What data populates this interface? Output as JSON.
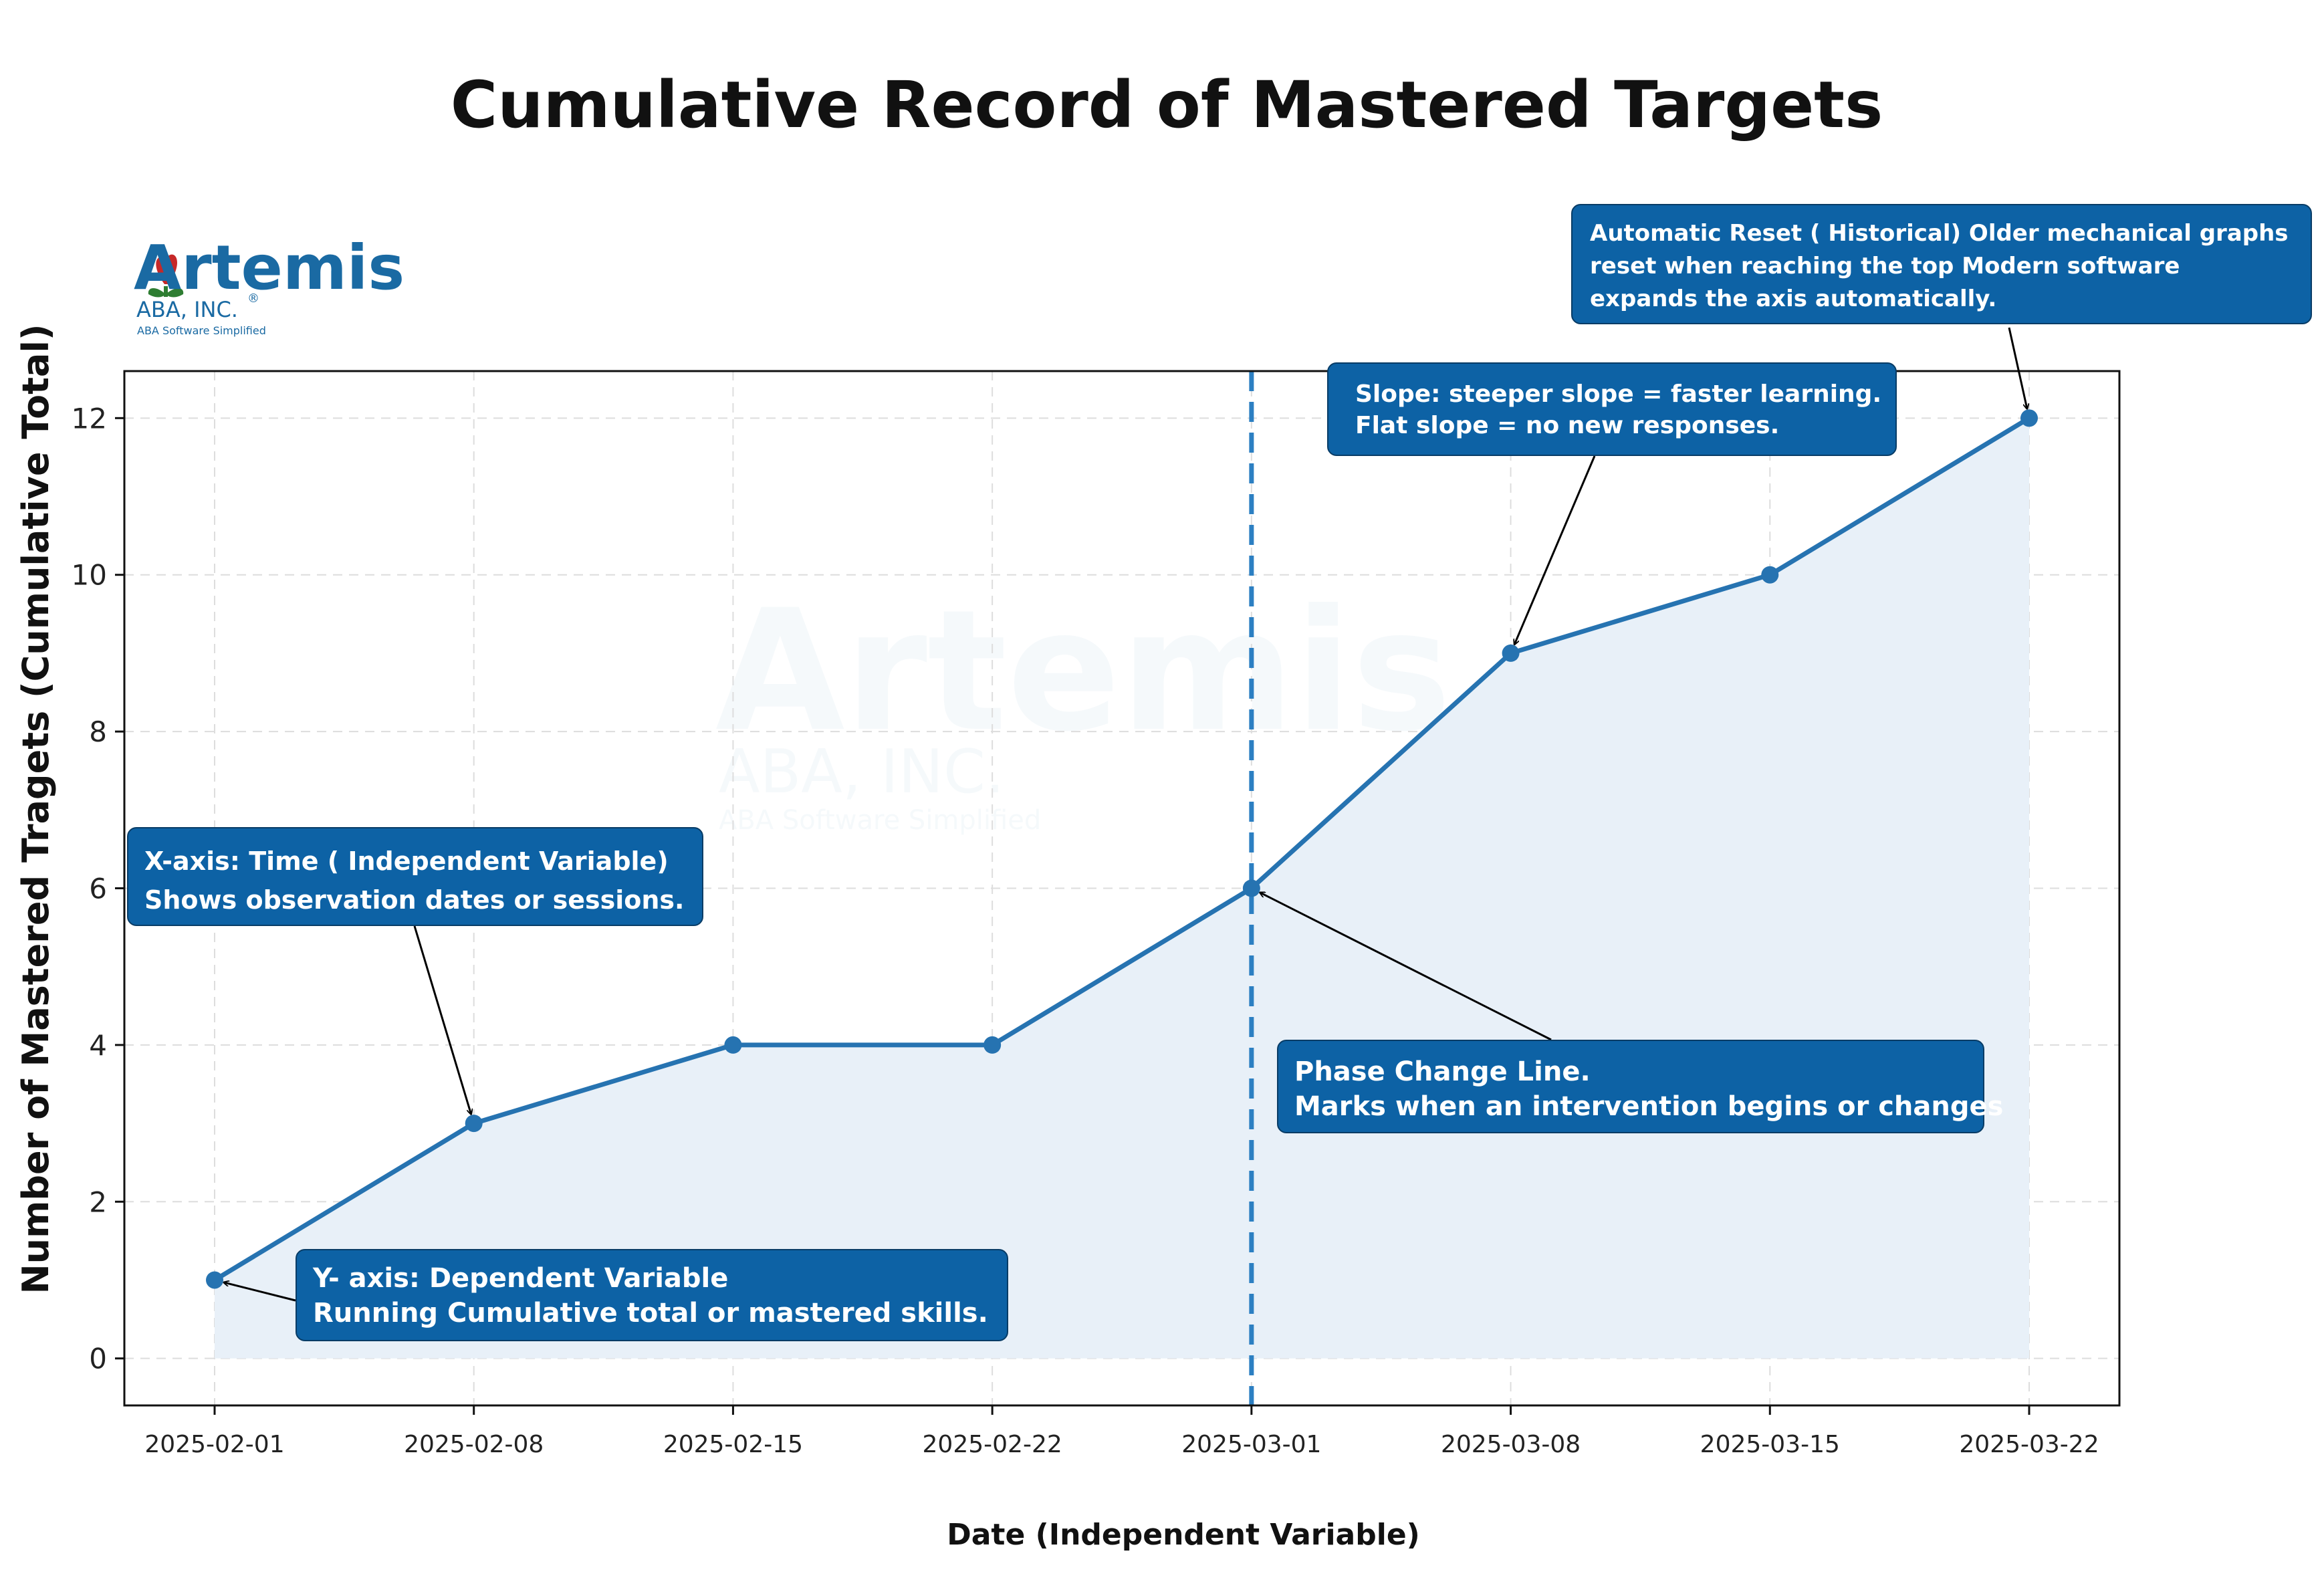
{
  "logo": {
    "name": "Artemis",
    "company": "ABA, INC.",
    "registered": "®",
    "tagline": "ABA Software Simplified"
  },
  "chart_data": {
    "type": "line",
    "title": "Cumulative Record of Mastered Targets",
    "xlabel": "Date (Independent Variable)",
    "ylabel": "Number of Mastered Tragets (Cumulative Total)",
    "x": [
      "2025-02-01",
      "2025-02-08",
      "2025-02-15",
      "2025-02-22",
      "2025-03-01",
      "2025-03-08",
      "2025-03-15",
      "2025-03-22"
    ],
    "values": [
      1,
      3,
      4,
      4,
      6,
      9,
      10,
      12
    ],
    "ylim": [
      -0.6,
      12.6
    ],
    "yticks": [
      0,
      2,
      4,
      6,
      8,
      10,
      12
    ],
    "grid": true,
    "filled_area": true,
    "line_color": "#2673b1",
    "fill_color": "#e8f0f8",
    "phase_change": {
      "x": "2025-03-01",
      "color": "#2c7fc2"
    },
    "annotations": [
      {
        "id": "reset",
        "target_x": "2025-03-22",
        "target_y": 12,
        "lines": [
          "Automatic Reset ( Historical) Older mechanical graphs",
          "reset when reaching the top Modern software",
          "expands the axis automatically."
        ]
      },
      {
        "id": "slope",
        "target_x": "2025-03-08",
        "target_y": 9,
        "lines": [
          "Slope: steeper slope = faster learning.",
          "Flat slope = no new responses."
        ]
      },
      {
        "id": "xaxis",
        "target_x": "2025-02-08",
        "target_y": 3,
        "lines": [
          "X-axis: Time ( Independent Variable)",
          "Shows observation dates or sessions."
        ]
      },
      {
        "id": "phase",
        "target_x": "2025-03-01",
        "target_y": 6,
        "lines": [
          "Phase Change Line.",
          "Marks when an intervention begins or changes"
        ]
      },
      {
        "id": "yaxis",
        "target_x": "2025-02-01",
        "target_y": 1,
        "lines": [
          "Y- axis: Dependent Variable",
          "Running Cumulative total or mastered skills."
        ]
      }
    ]
  },
  "colors": {
    "annotation_fill": "#0d62a5",
    "brand": "#1a6aa3",
    "grid": "#dddddd"
  }
}
